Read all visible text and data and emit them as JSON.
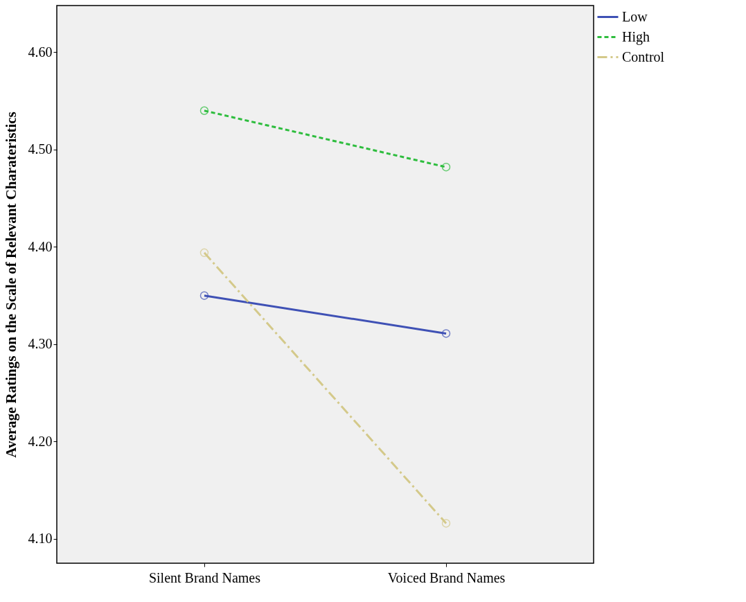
{
  "chart_data": {
    "type": "line",
    "ylabel": "Average Ratings on the Scale of Relevant Charateristics",
    "categories": [
      "Silent Brand Names",
      "Voiced Brand Names"
    ],
    "series": [
      {
        "name": "Low",
        "color": "#3f51b5",
        "values": [
          4.35,
          4.311
        ],
        "line_style": "solid"
      },
      {
        "name": "High",
        "color": "#2ebd3e",
        "values": [
          4.54,
          4.482
        ],
        "line_style": "dashed"
      },
      {
        "name": "Control",
        "color": "#d4c98a",
        "values": [
          4.394,
          4.116
        ],
        "line_style": "dashdot"
      }
    ],
    "ylim": [
      4.075,
      4.648
    ],
    "yticks": [
      {
        "value": 4.1,
        "label": "4.10"
      },
      {
        "value": 4.2,
        "label": "4.20"
      },
      {
        "value": 4.3,
        "label": "4.30"
      },
      {
        "value": 4.4,
        "label": "4.40"
      },
      {
        "value": 4.5,
        "label": "4.50"
      },
      {
        "value": 4.6,
        "label": "4.60"
      }
    ],
    "marker": "circle",
    "legend": "top right",
    "grid": false
  }
}
